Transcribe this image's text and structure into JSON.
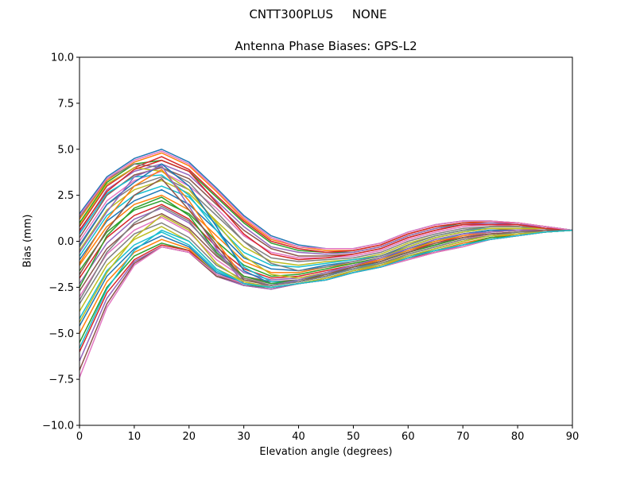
{
  "figure": {
    "suptitle_left": "CNTT300PLUS",
    "suptitle_right": "NONE"
  },
  "chart_data": {
    "type": "line",
    "title": "Antenna Phase Biases: GPS-L2",
    "xlabel": "Elevation angle (degrees)",
    "ylabel": "Bias (mm)",
    "xlim": [
      0,
      90
    ],
    "ylim": [
      -10,
      10
    ],
    "xticks": [
      0,
      10,
      20,
      30,
      40,
      50,
      60,
      70,
      80,
      90
    ],
    "yticks": [
      -10.0,
      -7.5,
      -5.0,
      -2.5,
      0.0,
      2.5,
      5.0,
      7.5,
      10.0
    ],
    "ytick_labels": [
      "−10.0",
      "−7.5",
      "−5.0",
      "−2.5",
      "0.0",
      "2.5",
      "5.0",
      "7.5",
      "10.0"
    ],
    "grid": false,
    "x": [
      0,
      5,
      10,
      15,
      20,
      25,
      30,
      35,
      40,
      45,
      50,
      55,
      60,
      65,
      70,
      75,
      80,
      85,
      90
    ],
    "colors": [
      "#1f77b4",
      "#ff7f0e",
      "#2ca02c",
      "#d62728",
      "#9467bd",
      "#8c564b",
      "#e377c2",
      "#7f7f7f",
      "#bcbd22",
      "#17becf"
    ],
    "series": [
      {
        "values": [
          1.5,
          3.5,
          4.5,
          5.0,
          4.3,
          2.9,
          1.4,
          0.3,
          -0.2,
          -0.4,
          -0.4,
          -0.1,
          0.5,
          0.9,
          1.1,
          1.1,
          1.0,
          0.8,
          0.6
        ]
      },
      {
        "values": [
          1.2,
          3.3,
          4.3,
          4.8,
          4.1,
          2.7,
          1.2,
          0.1,
          -0.3,
          -0.5,
          -0.5,
          -0.2,
          0.4,
          0.8,
          1.0,
          1.1,
          1.0,
          0.8,
          0.6
        ]
      },
      {
        "values": [
          1.0,
          3.2,
          4.2,
          4.4,
          3.8,
          2.4,
          1.0,
          -0.1,
          -0.5,
          -0.6,
          -0.6,
          -0.3,
          0.3,
          0.7,
          1.0,
          1.0,
          0.9,
          0.8,
          0.6
        ]
      },
      {
        "values": [
          0.8,
          3.0,
          4.0,
          4.6,
          3.9,
          2.5,
          1.1,
          0.0,
          -0.4,
          -0.6,
          -0.5,
          -0.2,
          0.4,
          0.8,
          1.0,
          1.0,
          1.0,
          0.8,
          0.6
        ]
      },
      {
        "values": [
          0.5,
          2.8,
          3.8,
          4.2,
          3.6,
          2.2,
          0.8,
          -0.3,
          -0.6,
          -0.7,
          -0.6,
          -0.3,
          0.3,
          0.7,
          0.9,
          1.0,
          0.9,
          0.8,
          0.6
        ]
      },
      {
        "values": [
          0.2,
          2.5,
          3.6,
          4.0,
          3.4,
          2.0,
          0.6,
          -0.4,
          -0.8,
          -0.8,
          -0.7,
          -0.4,
          0.2,
          0.6,
          0.9,
          0.9,
          0.9,
          0.7,
          0.6
        ]
      },
      {
        "values": [
          0.0,
          2.2,
          3.3,
          3.8,
          3.0,
          1.8,
          0.3,
          -0.6,
          -0.9,
          -0.9,
          -0.8,
          -0.5,
          0.1,
          0.5,
          0.8,
          0.9,
          0.8,
          0.7,
          0.6
        ]
      },
      {
        "values": [
          -0.3,
          2.0,
          3.0,
          3.5,
          2.8,
          1.4,
          0.0,
          -0.9,
          -1.1,
          -1.0,
          -0.9,
          -0.6,
          0.0,
          0.4,
          0.7,
          0.8,
          0.8,
          0.7,
          0.6
        ]
      },
      {
        "values": [
          -0.5,
          1.7,
          2.8,
          3.3,
          2.6,
          1.1,
          -0.3,
          -1.1,
          -1.3,
          -1.1,
          -1.0,
          -0.7,
          -0.1,
          0.3,
          0.6,
          0.8,
          0.8,
          0.7,
          0.6
        ]
      },
      {
        "values": [
          -0.8,
          1.4,
          2.5,
          3.0,
          2.4,
          0.9,
          -0.6,
          -1.3,
          -1.4,
          -1.2,
          -1.0,
          -0.8,
          -0.2,
          0.3,
          0.6,
          0.7,
          0.7,
          0.7,
          0.6
        ]
      },
      {
        "values": [
          -1.0,
          1.1,
          2.2,
          2.8,
          2.0,
          0.6,
          -0.9,
          -1.5,
          -1.6,
          -1.3,
          -1.1,
          -0.8,
          -0.3,
          0.2,
          0.5,
          0.7,
          0.7,
          0.7,
          0.6
        ]
      },
      {
        "values": [
          -1.3,
          0.8,
          2.0,
          2.5,
          1.7,
          0.3,
          -1.1,
          -1.7,
          -1.7,
          -1.4,
          -1.2,
          -0.9,
          -0.4,
          0.1,
          0.4,
          0.6,
          0.7,
          0.6,
          0.6
        ]
      },
      {
        "values": [
          -1.6,
          0.5,
          1.7,
          2.2,
          1.5,
          0.0,
          -1.3,
          -1.9,
          -1.8,
          -1.5,
          -1.2,
          -0.9,
          -0.4,
          0.0,
          0.4,
          0.6,
          0.6,
          0.6,
          0.6
        ]
      },
      {
        "values": [
          -2.0,
          0.2,
          1.4,
          2.0,
          1.2,
          -0.3,
          -1.5,
          -2.0,
          -1.9,
          -1.6,
          -1.3,
          -1.0,
          -0.5,
          -0.1,
          0.3,
          0.5,
          0.6,
          0.6,
          0.6
        ]
      },
      {
        "values": [
          -2.3,
          -0.1,
          1.2,
          1.8,
          1.0,
          -0.5,
          -1.7,
          -2.1,
          -2.0,
          -1.7,
          -1.4,
          -1.1,
          -0.6,
          -0.2,
          0.2,
          0.5,
          0.6,
          0.6,
          0.6
        ]
      },
      {
        "values": [
          -2.7,
          -0.4,
          0.9,
          1.5,
          0.7,
          -0.8,
          -1.9,
          -2.2,
          -2.1,
          -1.8,
          -1.4,
          -1.1,
          -0.6,
          -0.2,
          0.2,
          0.4,
          0.5,
          0.6,
          0.6
        ]
      },
      {
        "values": [
          -3.0,
          -0.7,
          0.6,
          1.3,
          0.5,
          -1.0,
          -2.0,
          -2.3,
          -2.2,
          -1.9,
          -1.5,
          -1.2,
          -0.7,
          -0.3,
          0.1,
          0.4,
          0.5,
          0.6,
          0.6
        ]
      },
      {
        "values": [
          -3.4,
          -1.0,
          0.4,
          1.0,
          0.2,
          -1.3,
          -2.1,
          -2.4,
          -2.2,
          -1.9,
          -1.5,
          -1.2,
          -0.7,
          -0.3,
          0.1,
          0.3,
          0.5,
          0.5,
          0.6
        ]
      },
      {
        "values": [
          -3.8,
          -1.3,
          0.1,
          0.8,
          0.0,
          -1.5,
          -2.2,
          -2.5,
          -2.3,
          -2.0,
          -1.6,
          -1.2,
          -0.8,
          -0.4,
          0.0,
          0.3,
          0.4,
          0.5,
          0.6
        ]
      },
      {
        "values": [
          -4.2,
          -1.6,
          -0.2,
          0.5,
          -0.2,
          -1.6,
          -2.3,
          -2.5,
          -2.3,
          -2.0,
          -1.6,
          -1.3,
          -0.8,
          -0.4,
          0.0,
          0.3,
          0.4,
          0.5,
          0.6
        ]
      },
      {
        "values": [
          -4.6,
          -1.9,
          -0.4,
          0.3,
          -0.3,
          -1.7,
          -2.3,
          -2.5,
          -2.3,
          -2.0,
          -1.6,
          -1.3,
          -0.8,
          -0.5,
          -0.1,
          0.2,
          0.4,
          0.5,
          0.6
        ]
      },
      {
        "values": [
          -5.0,
          -2.2,
          -0.6,
          0.1,
          -0.4,
          -1.8,
          -2.3,
          -2.5,
          -2.3,
          -2.0,
          -1.7,
          -1.3,
          -0.9,
          -0.5,
          -0.1,
          0.2,
          0.4,
          0.5,
          0.6
        ]
      },
      {
        "values": [
          -5.5,
          -2.5,
          -0.8,
          -0.1,
          -0.5,
          -1.8,
          -2.4,
          -2.5,
          -2.3,
          -2.1,
          -1.7,
          -1.4,
          -0.9,
          -0.5,
          -0.2,
          0.2,
          0.3,
          0.5,
          0.6
        ]
      },
      {
        "values": [
          -6.0,
          -2.8,
          -1.0,
          -0.2,
          -0.5,
          -1.9,
          -2.4,
          -2.6,
          -2.3,
          -2.1,
          -1.7,
          -1.4,
          -0.9,
          -0.6,
          -0.2,
          0.1,
          0.3,
          0.5,
          0.6
        ]
      },
      {
        "values": [
          -6.5,
          -3.1,
          -1.1,
          -0.3,
          -0.6,
          -1.9,
          -2.4,
          -2.6,
          -2.3,
          -2.1,
          -1.7,
          -1.4,
          -1.0,
          -0.6,
          -0.2,
          0.1,
          0.3,
          0.5,
          0.6
        ]
      },
      {
        "values": [
          -7.0,
          -3.4,
          -1.2,
          -0.3,
          -0.6,
          -1.9,
          -2.3,
          -2.5,
          -2.3,
          -2.1,
          -1.7,
          -1.4,
          -1.0,
          -0.6,
          -0.3,
          0.1,
          0.3,
          0.5,
          0.6
        ]
      },
      {
        "values": [
          -7.4,
          -3.6,
          -1.3,
          -0.3,
          -0.6,
          -1.8,
          -2.3,
          -2.5,
          -2.3,
          -2.1,
          -1.7,
          -1.4,
          -1.0,
          -0.6,
          -0.3,
          0.1,
          0.3,
          0.5,
          0.6
        ]
      },
      {
        "values": [
          1.3,
          3.4,
          4.2,
          4.0,
          3.2,
          1.6,
          0.0,
          -1.2,
          -1.6,
          -1.4,
          -1.1,
          -0.8,
          -0.2,
          0.3,
          0.6,
          0.8,
          0.8,
          0.7,
          0.6
        ]
      },
      {
        "values": [
          0.9,
          3.1,
          4.0,
          3.8,
          2.8,
          1.0,
          -0.8,
          -1.8,
          -2.0,
          -1.7,
          -1.3,
          -0.9,
          -0.3,
          0.2,
          0.5,
          0.7,
          0.7,
          0.7,
          0.6
        ]
      },
      {
        "values": [
          0.4,
          2.6,
          3.5,
          3.6,
          2.5,
          0.6,
          -1.4,
          -2.2,
          -2.2,
          -1.9,
          -1.5,
          -1.1,
          -0.5,
          0.0,
          0.4,
          0.6,
          0.6,
          0.6,
          0.6
        ]
      },
      {
        "values": [
          -0.2,
          2.0,
          3.2,
          4.2,
          3.0,
          0.8,
          -1.6,
          -2.3,
          -2.2,
          -1.9,
          -1.4,
          -1.0,
          -0.4,
          0.1,
          0.4,
          0.6,
          0.6,
          0.6,
          0.6
        ]
      },
      {
        "values": [
          -1.2,
          1.2,
          3.0,
          3.9,
          2.2,
          0.0,
          -2.0,
          -2.4,
          -2.2,
          -1.8,
          -1.4,
          -1.0,
          -0.5,
          0.0,
          0.3,
          0.5,
          0.6,
          0.6,
          0.6
        ]
      },
      {
        "values": [
          -2.5,
          0.3,
          1.8,
          2.4,
          1.4,
          -0.6,
          -1.9,
          -2.3,
          -2.1,
          -1.8,
          -1.4,
          -1.1,
          -0.6,
          -0.2,
          0.2,
          0.4,
          0.5,
          0.6,
          0.6
        ]
      },
      {
        "values": [
          0.6,
          2.7,
          3.9,
          4.4,
          3.8,
          2.1,
          0.4,
          -0.7,
          -1.0,
          -0.9,
          -0.7,
          -0.4,
          0.2,
          0.6,
          0.9,
          0.9,
          0.9,
          0.7,
          0.6
        ]
      },
      {
        "values": [
          -0.6,
          1.6,
          3.5,
          4.1,
          1.9,
          -0.4,
          -2.3,
          -2.4,
          -2.1,
          -1.7,
          -1.3,
          -0.9,
          -0.4,
          0.1,
          0.4,
          0.5,
          0.6,
          0.6,
          0.6
        ]
      },
      {
        "values": [
          -1.8,
          0.6,
          2.5,
          3.4,
          1.7,
          -0.2,
          -2.1,
          -2.4,
          -2.2,
          -1.8,
          -1.4,
          -1.1,
          -0.6,
          -0.1,
          0.2,
          0.4,
          0.5,
          0.6,
          0.6
        ]
      },
      {
        "values": [
          1.4,
          3.4,
          4.4,
          4.9,
          4.2,
          2.8,
          1.3,
          0.2,
          -0.3,
          -0.4,
          -0.4,
          -0.1,
          0.5,
          0.9,
          1.1,
          1.1,
          1.0,
          0.8,
          0.6
        ]
      },
      {
        "values": [
          -3.2,
          -0.6,
          1.0,
          1.9,
          1.1,
          -0.7,
          -2.0,
          -2.4,
          -2.2,
          -1.9,
          -1.5,
          -1.2,
          -0.7,
          -0.3,
          0.1,
          0.3,
          0.5,
          0.5,
          0.6
        ]
      },
      {
        "values": [
          -4.4,
          -1.7,
          0.2,
          1.4,
          0.6,
          -1.2,
          -2.2,
          -2.5,
          -2.3,
          -2.0,
          -1.6,
          -1.3,
          -0.8,
          -0.4,
          0.0,
          0.3,
          0.4,
          0.5,
          0.6
        ]
      },
      {
        "values": [
          -5.8,
          -2.6,
          -0.5,
          0.6,
          0.0,
          -1.5,
          -2.3,
          -2.5,
          -2.3,
          -2.1,
          -1.7,
          -1.4,
          -0.9,
          -0.5,
          -0.2,
          0.1,
          0.3,
          0.5,
          0.6
        ]
      }
    ]
  }
}
